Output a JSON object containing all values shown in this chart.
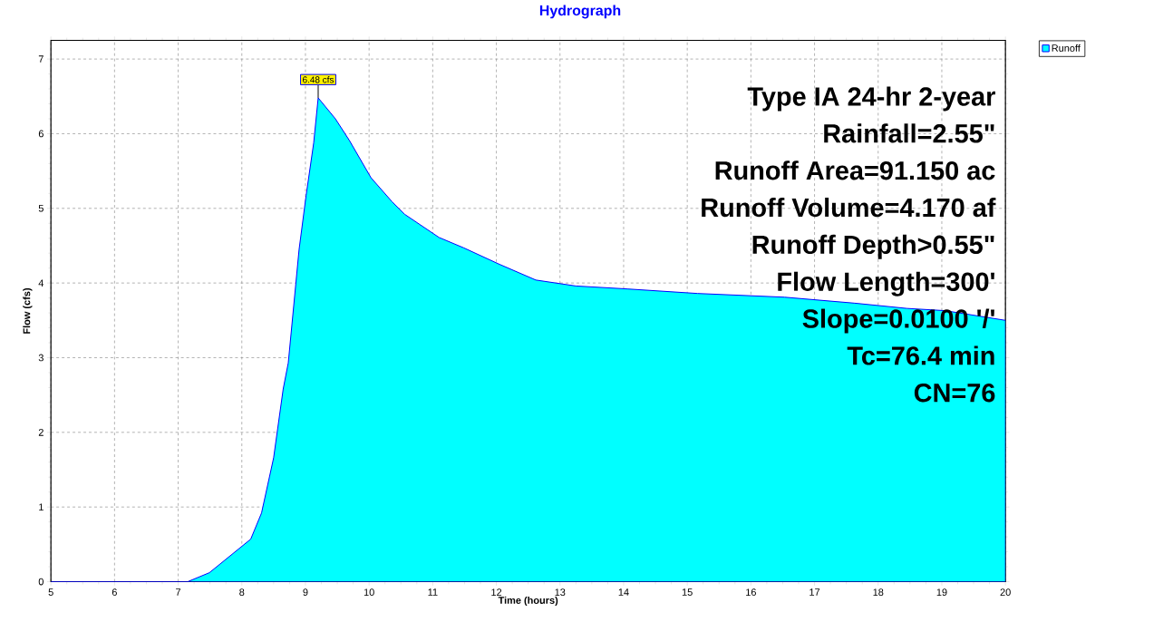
{
  "chart_data": {
    "type": "area",
    "title": "Hydrograph",
    "xlabel": "Time  (hours)",
    "ylabel": "Flow  (cfs)",
    "x": [
      5,
      7.15,
      7.49,
      8.14,
      8.31,
      8.5,
      8.65,
      8.73,
      8.9,
      9.01,
      9.13,
      9.2,
      9.47,
      9.69,
      10.03,
      10.36,
      10.56,
      11.1,
      11.49,
      12.05,
      12.62,
      13.25,
      14.07,
      15.16,
      16.53,
      17.63,
      18.45,
      19.05,
      20
    ],
    "series": [
      {
        "name": "Runoff",
        "color": "#00ffff",
        "values": [
          0,
          0,
          0.12,
          0.57,
          0.92,
          1.66,
          2.58,
          2.93,
          4.45,
          5.17,
          5.88,
          6.48,
          6.2,
          5.91,
          5.41,
          5.09,
          4.92,
          4.61,
          4.47,
          4.25,
          4.04,
          3.96,
          3.92,
          3.86,
          3.81,
          3.73,
          3.66,
          3.63,
          3.5
        ]
      }
    ],
    "xlim": [
      5,
      20
    ],
    "ylim": [
      0,
      7.25
    ],
    "xticks": [
      5,
      6,
      7,
      8,
      9,
      10,
      11,
      12,
      13,
      14,
      15,
      16,
      17,
      18,
      19,
      20
    ],
    "yticks": [
      0,
      1,
      2,
      3,
      4,
      5,
      6,
      7
    ],
    "grid": true,
    "legend": "top right",
    "annotations": [
      {
        "text": "6.48 cfs",
        "x": 9.2,
        "y": 6.48
      },
      "Type IA 24-hr 2-year",
      "Rainfall=2.55\"",
      "Runoff Area=91.150 ac",
      "Runoff Volume=4.170 af",
      "Runoff Depth>0.55\"",
      "Flow Length=300'",
      "Slope=0.0100 '/'",
      "Tc=76.4 min",
      "CN=76"
    ]
  }
}
